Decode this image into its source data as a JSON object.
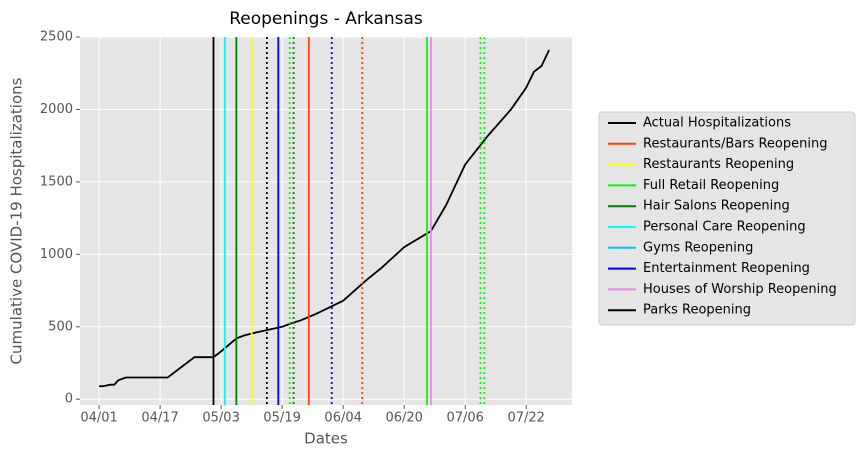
{
  "chart_data": {
    "type": "line",
    "title": "Reopenings - Arkansas",
    "x_label": "Dates",
    "y_label": "Cumulative COVID-19 Hospitalizations",
    "xlim": [
      "03/27",
      "08/03"
    ],
    "xticks": [
      "04/01",
      "04/17",
      "05/03",
      "05/19",
      "06/04",
      "06/20",
      "07/06",
      "07/22"
    ],
    "ylim": [
      -40,
      2500
    ],
    "yticks": [
      0,
      500,
      1000,
      1500,
      2000,
      2500
    ],
    "grid": true,
    "legend": "right",
    "series": [
      {
        "name": "Actual Hospitalizations",
        "color": "#000000",
        "x": [
          "04/01",
          "04/02",
          "04/04",
          "04/05",
          "04/06",
          "04/08",
          "04/12",
          "04/19",
          "04/26",
          "05/01",
          "05/03",
          "05/07",
          "05/09",
          "05/12",
          "05/19",
          "05/21",
          "05/24",
          "05/28",
          "06/04",
          "06/10",
          "06/14",
          "06/20",
          "06/27",
          "07/01",
          "07/06",
          "07/12",
          "07/18",
          "07/22",
          "07/24",
          "07/26",
          "07/28"
        ],
        "values": [
          90,
          90,
          100,
          100,
          130,
          150,
          150,
          150,
          290,
          290,
          330,
          420,
          440,
          460,
          500,
          520,
          545,
          590,
          680,
          820,
          905,
          1050,
          1160,
          1340,
          1620,
          1820,
          2000,
          2150,
          2260,
          2300,
          2410
        ]
      },
      {
        "name": "Restaurants/Bars Reopening",
        "color": "#ff4500",
        "type": "vline",
        "x": [
          "05/26",
          "06/09"
        ],
        "linestyles": [
          "solid",
          "dotted"
        ]
      },
      {
        "name": "Restaurants Reopening",
        "color": "#ffff00",
        "type": "vline",
        "x": [
          "05/11"
        ],
        "linestyles": [
          "solid"
        ]
      },
      {
        "name": "Full Retail Reopening",
        "color": "#00ff00",
        "type": "vline",
        "x": [
          "06/26",
          "05/21",
          "07/10",
          "07/11"
        ],
        "linestyles": [
          "solid",
          "dotted",
          "dotted",
          "dotted"
        ]
      },
      {
        "name": "Hair Salons Reopening",
        "color": "#008000",
        "type": "vline",
        "x": [
          "05/07",
          "05/22"
        ],
        "linestyles": [
          "solid",
          "dotted"
        ]
      },
      {
        "name": "Personal Care Reopening",
        "color": "#00ffff",
        "type": "vline",
        "x": [
          "05/04"
        ],
        "linestyles": [
          "solid"
        ]
      },
      {
        "name": "Gyms Reopening",
        "color": "#00bfff",
        "type": "vline",
        "x": [
          "05/18"
        ],
        "linestyles": [
          "dotted"
        ]
      },
      {
        "name": "Entertainment Reopening",
        "color": "#0000ff",
        "type": "vline",
        "x": [
          "05/18",
          "06/01"
        ],
        "linestyles": [
          "solid",
          "dotted"
        ]
      },
      {
        "name": "Houses of Worship Reopening",
        "color": "#ee82ee",
        "type": "vline",
        "x": [
          "06/27"
        ],
        "linestyles": [
          "solid"
        ]
      },
      {
        "name": "Parks Reopening",
        "color": "#000000",
        "type": "vline",
        "x": [
          "05/01",
          "05/15"
        ],
        "linestyles": [
          "solid",
          "dotted"
        ]
      }
    ]
  }
}
